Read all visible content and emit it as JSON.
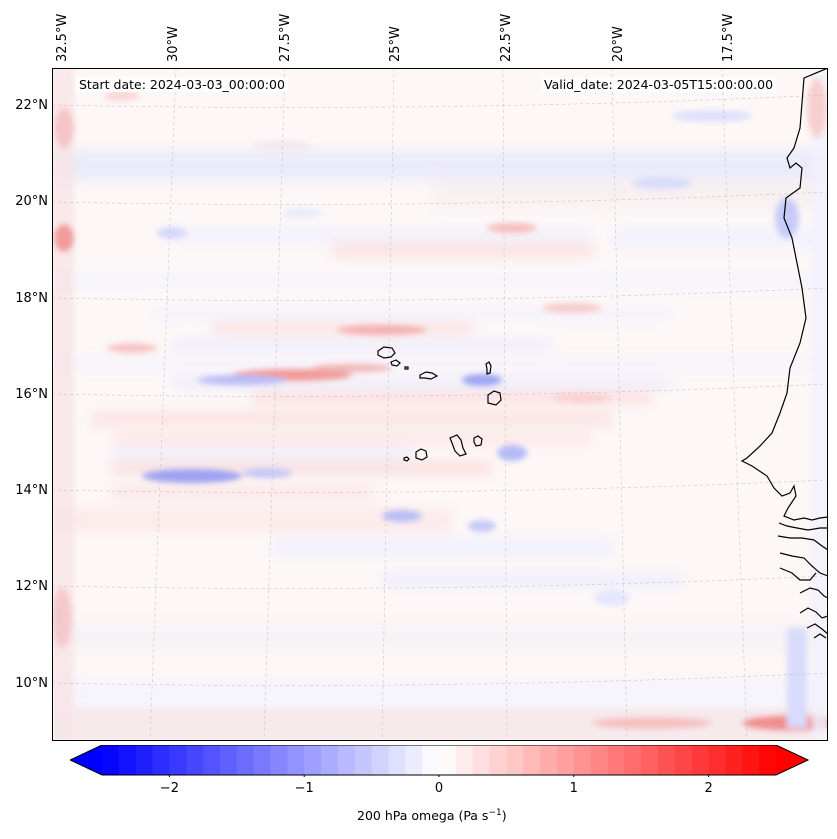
{
  "map": {
    "start_label": "Start date: 2024-03-03_00:00:00",
    "valid_label": "Valid_date: 2024-03-05T15:00:00.00",
    "field": "200 hPa omega",
    "lon_labels": [
      "32.5°W",
      "30°W",
      "27.5°W",
      "25°W",
      "22.5°W",
      "20°W",
      "17.5°W"
    ],
    "lat_labels": [
      "22°N",
      "20°N",
      "18°N",
      "16°N",
      "14°N",
      "12°N",
      "10°N"
    ],
    "extent": {
      "lon_min": -32.6,
      "lon_max": -15.6,
      "lat_min": 8.9,
      "lat_max": 22.7
    },
    "islands": [
      "Santo Antão",
      "São Vicente",
      "São Nicolau",
      "Sal",
      "Boa Vista",
      "Maio",
      "Santiago",
      "Fogo",
      "Brava"
    ],
    "coastline": "West Africa (Mauritania, Senegal, The Gambia, Guinea-Bissau)"
  },
  "colorbar": {
    "label_prefix": "200 hPa omega (Pa s",
    "label_exp": "−1",
    "label_suffix": ")",
    "ticks": [
      "−2",
      "−1",
      "0",
      "1",
      "2"
    ],
    "tick_values": [
      -2,
      -1,
      0,
      1,
      2
    ],
    "range": [
      -2.5,
      2.5
    ],
    "levels": 40,
    "cmap": "bwr",
    "extend": "both",
    "color_low": "#0000ff",
    "color_mid": "#ffffff",
    "color_high": "#ff0000"
  }
}
